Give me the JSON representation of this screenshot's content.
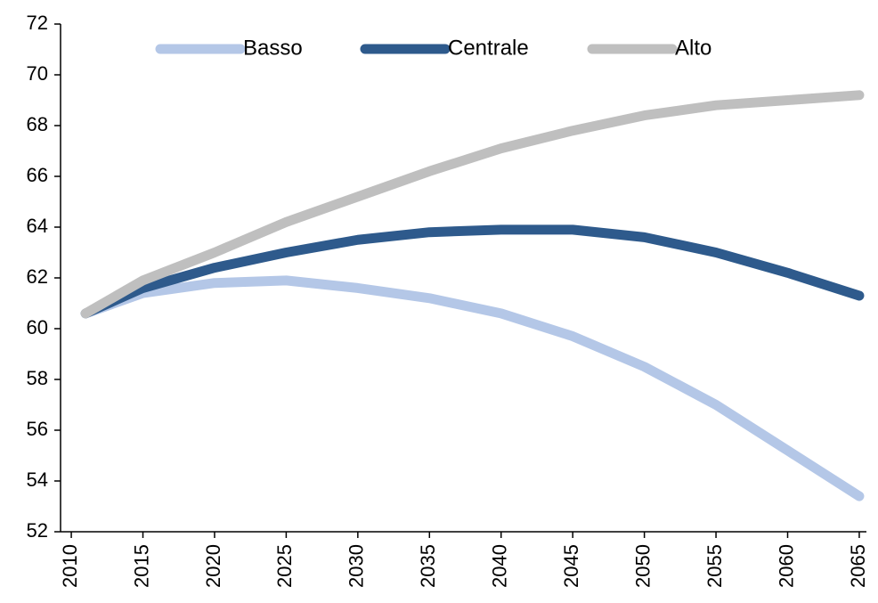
{
  "chart_data": {
    "type": "line",
    "x": [
      2011,
      2015,
      2020,
      2025,
      2030,
      2035,
      2040,
      2045,
      2050,
      2055,
      2060,
      2065
    ],
    "series": [
      {
        "name": "Basso",
        "color": "#b4c7e7",
        "values": [
          60.6,
          61.4,
          61.8,
          61.9,
          61.6,
          61.2,
          60.6,
          59.7,
          58.5,
          57.0,
          55.2,
          53.4
        ]
      },
      {
        "name": "Centrale",
        "color": "#2e5a8c",
        "values": [
          60.6,
          61.6,
          62.4,
          63.0,
          63.5,
          63.8,
          63.9,
          63.9,
          63.6,
          63.0,
          62.2,
          61.3
        ]
      },
      {
        "name": "Alto",
        "color": "#bfbfbf",
        "values": [
          60.6,
          61.9,
          63.0,
          64.2,
          65.2,
          66.2,
          67.1,
          67.8,
          68.4,
          68.8,
          69.0,
          69.2
        ]
      }
    ],
    "xlim": [
      2009.25,
      2065.5
    ],
    "xticks": [
      2010,
      2015,
      2020,
      2025,
      2030,
      2035,
      2040,
      2045,
      2050,
      2055,
      2060,
      2065
    ],
    "ylim": [
      52,
      72
    ],
    "yticks": [
      52,
      54,
      56,
      58,
      60,
      62,
      64,
      66,
      68,
      70,
      72
    ],
    "grid": false,
    "legend": "top"
  }
}
